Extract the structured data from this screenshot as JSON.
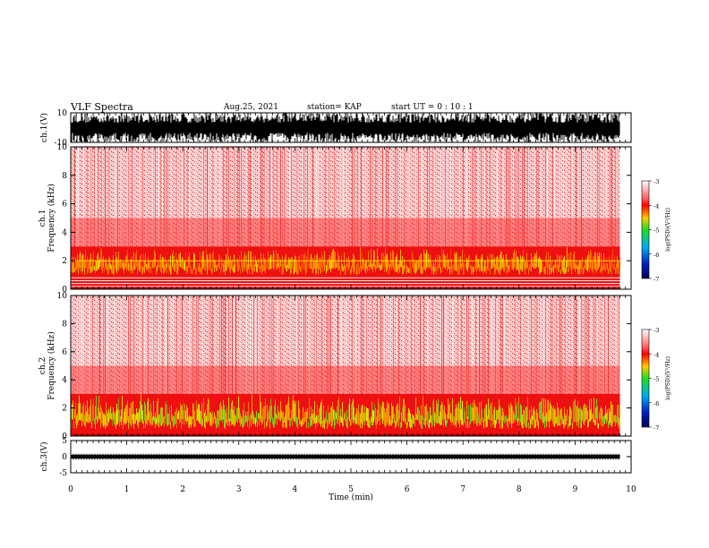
{
  "header": {
    "title": "VLF Spectra",
    "date": "Aug.25, 2021",
    "station": "station= KAP",
    "start": "start  UT =   0  : 10 : 1"
  },
  "chart_data": [
    {
      "type": "line",
      "ylabel": "ch.1(V)",
      "ylim": [
        -10,
        10
      ],
      "y_ticks": [
        "10",
        "-10"
      ],
      "x_range_min": [
        0,
        9.8
      ]
    },
    {
      "type": "heatmap",
      "ylabel_lines": [
        "ch.1",
        "Frequency (kHz)"
      ],
      "ylim": [
        0,
        10
      ],
      "y_ticks": [
        "0",
        "2",
        "4",
        "6",
        "8",
        "10"
      ],
      "colorbar": {
        "label": "log(PSD)(V²/Hz)",
        "ticks": [
          "-3",
          "-4",
          "-5",
          "-6",
          "-7"
        ],
        "range": [
          -7,
          -3
        ]
      },
      "enhanced_band_khz": [
        1,
        3
      ],
      "interference_lines_khz": [
        0.2,
        0.4,
        0.6,
        0.8,
        2.0
      ]
    },
    {
      "type": "heatmap",
      "ylabel_lines": [
        "ch.2",
        "Frequency (kHz)"
      ],
      "ylim": [
        0,
        10
      ],
      "y_ticks": [
        "0",
        "2",
        "4",
        "6",
        "8",
        "10"
      ],
      "colorbar": {
        "label": "log(PSD)(V²/Hz)",
        "ticks": [
          "-3",
          "-4",
          "-5",
          "-6",
          "-7"
        ],
        "range": [
          -7,
          -3
        ]
      },
      "enhanced_band_khz": [
        0.5,
        3
      ]
    },
    {
      "type": "line",
      "ylabel": "ch.3(V)",
      "ylim": [
        -5,
        5
      ],
      "y_ticks": [
        "5",
        "0",
        "-5"
      ],
      "xlabel": "Time (min)",
      "xlim": [
        0,
        10
      ],
      "x_ticks": [
        "0",
        "1",
        "2",
        "3",
        "4",
        "5",
        "6",
        "7",
        "8",
        "9",
        "10"
      ]
    }
  ]
}
